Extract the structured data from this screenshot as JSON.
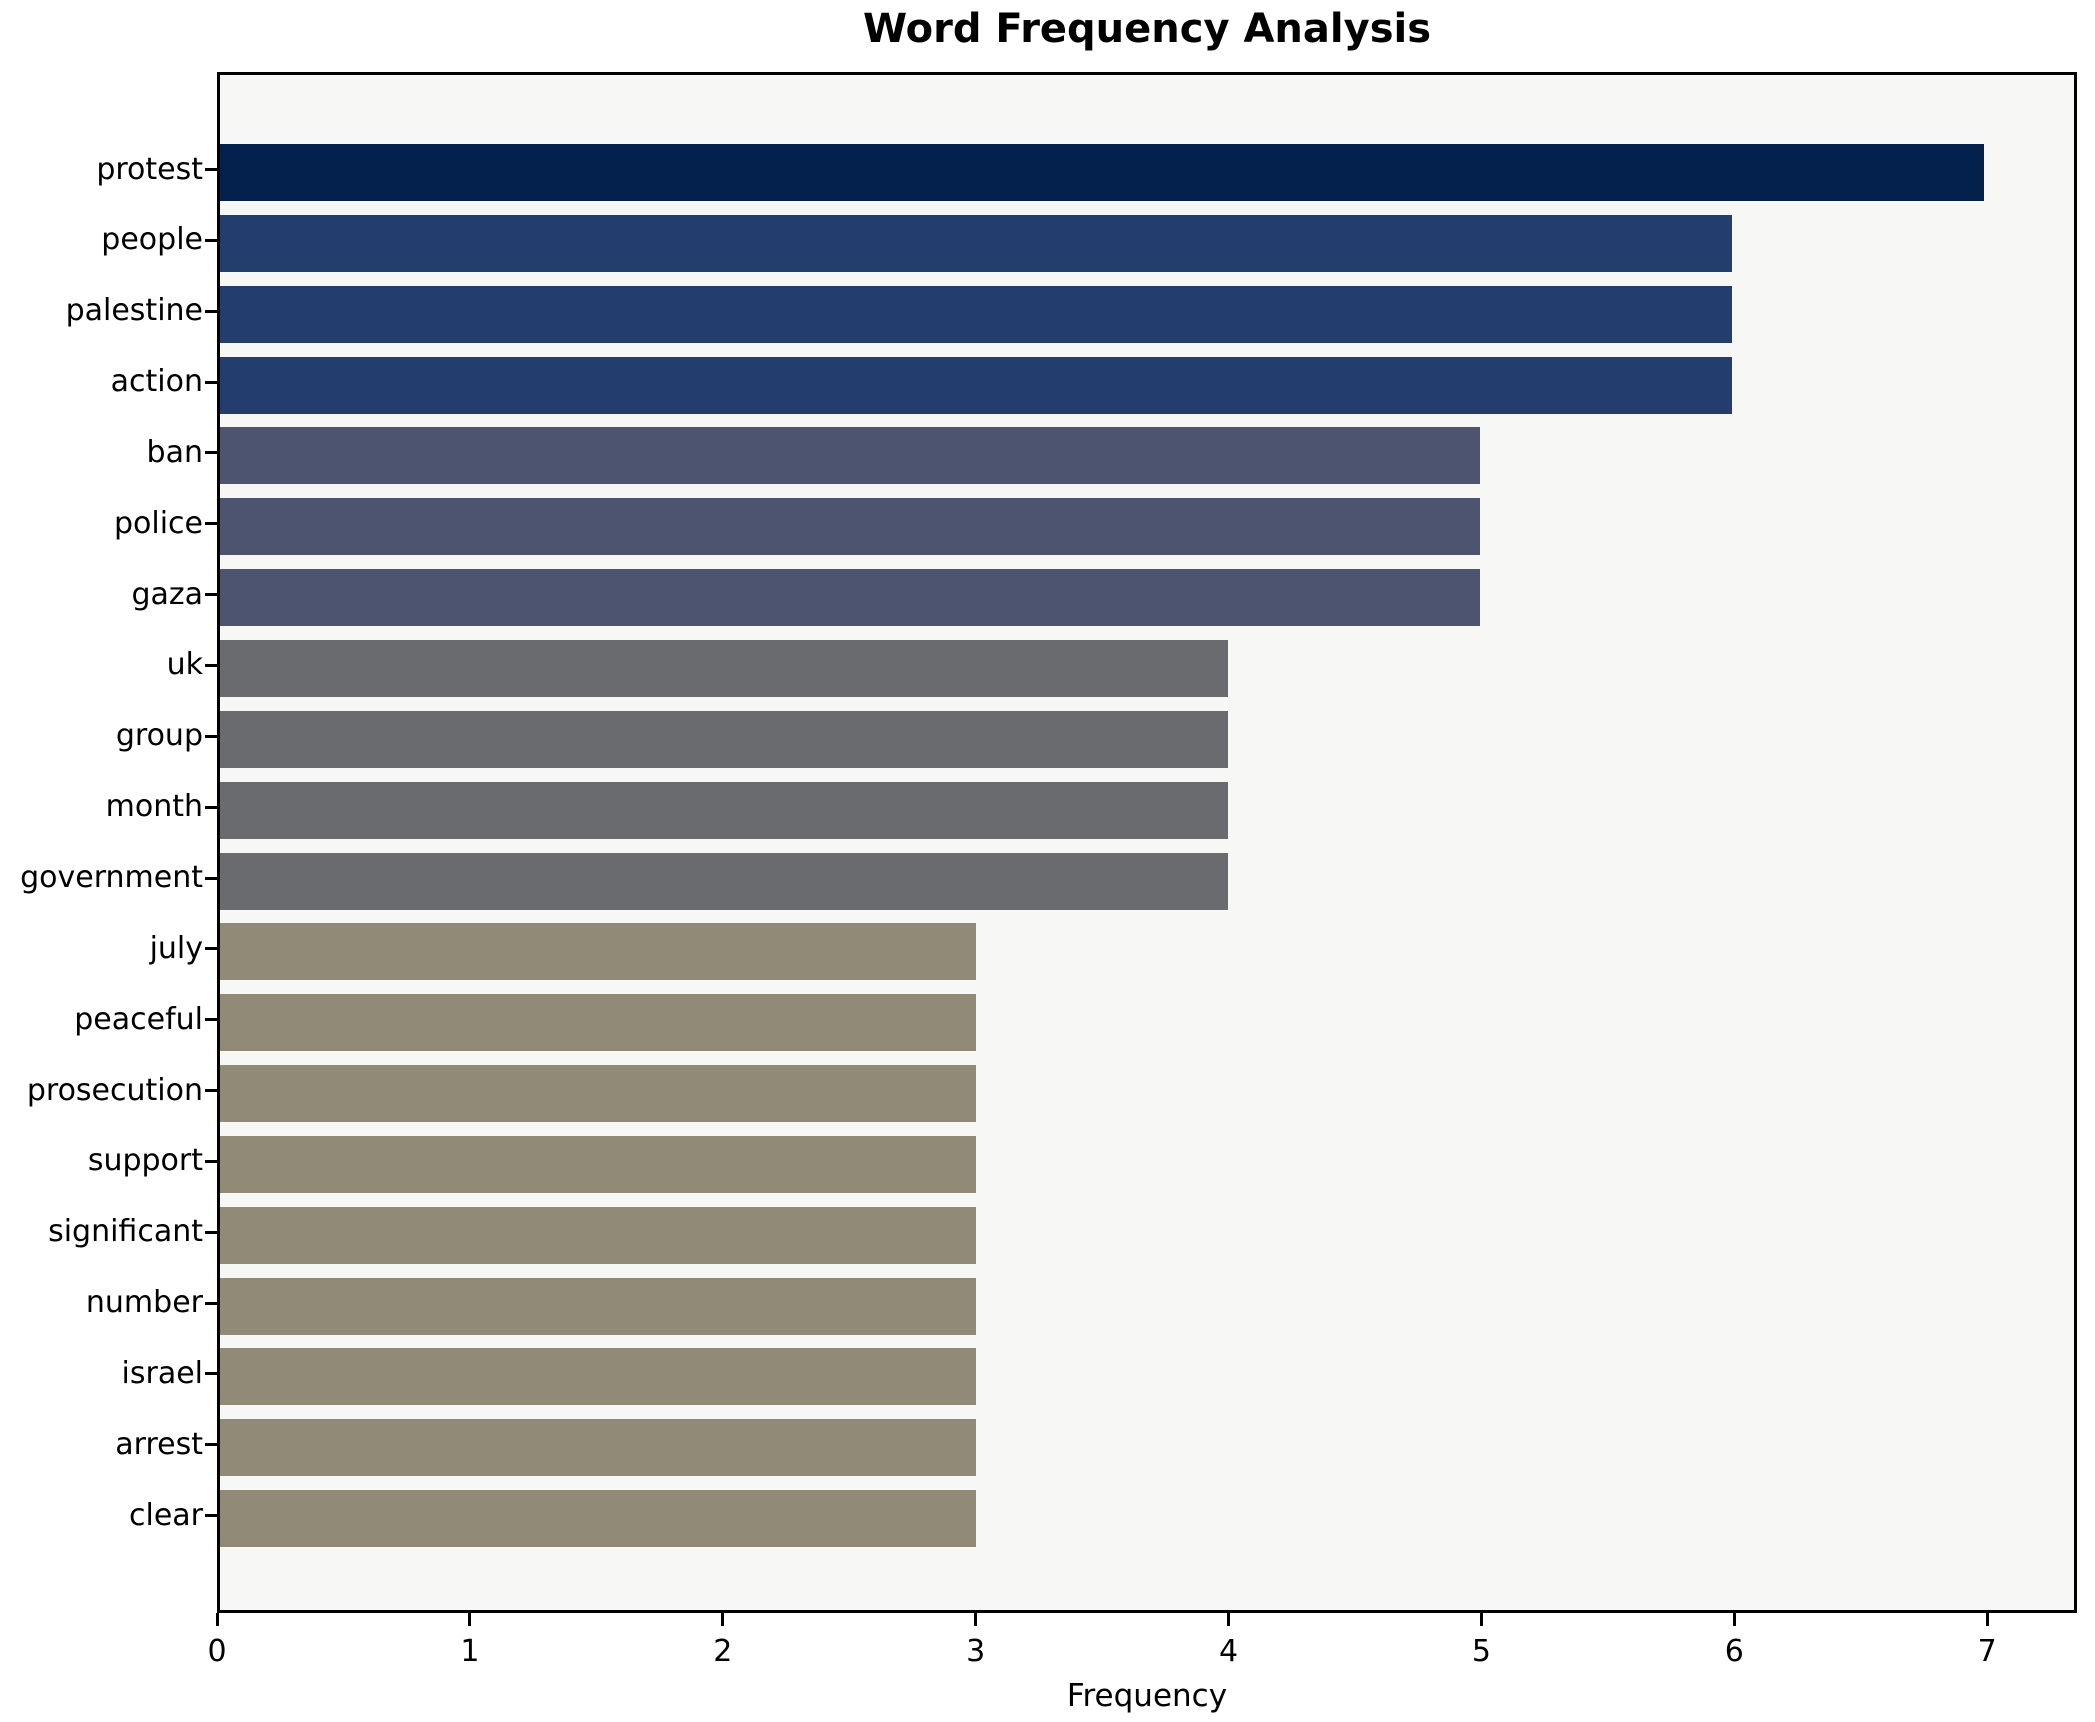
{
  "chart_data": {
    "type": "bar",
    "orientation": "horizontal",
    "title": "Word Frequency Analysis",
    "xlabel": "Frequency",
    "ylabel": "",
    "categories": [
      "protest",
      "people",
      "palestine",
      "action",
      "ban",
      "police",
      "gaza",
      "uk",
      "group",
      "month",
      "government",
      "july",
      "peaceful",
      "prosecution",
      "support",
      "significant",
      "number",
      "israel",
      "arrest",
      "clear"
    ],
    "values": [
      7,
      6,
      6,
      6,
      5,
      5,
      5,
      4,
      4,
      4,
      4,
      3,
      3,
      3,
      3,
      3,
      3,
      3,
      3,
      3
    ],
    "bar_colors": [
      "#03214c",
      "#223d6e",
      "#223d6e",
      "#223d6e",
      "#4d5470",
      "#4d5470",
      "#4d5470",
      "#6a6b6e",
      "#6a6b6e",
      "#6a6b6e",
      "#6a6b6e",
      "#908a77",
      "#908a77",
      "#908a77",
      "#908a77",
      "#908a77",
      "#908a77",
      "#908a77",
      "#908a77",
      "#908a77"
    ],
    "xticks": [
      0,
      1,
      2,
      3,
      4,
      5,
      6,
      7
    ],
    "xlim": [
      0,
      7.355
    ],
    "grid": false,
    "legend": null,
    "plot_background": "#f7f7f5",
    "figure_background": "#ffffff",
    "spine_color": "#000000"
  }
}
